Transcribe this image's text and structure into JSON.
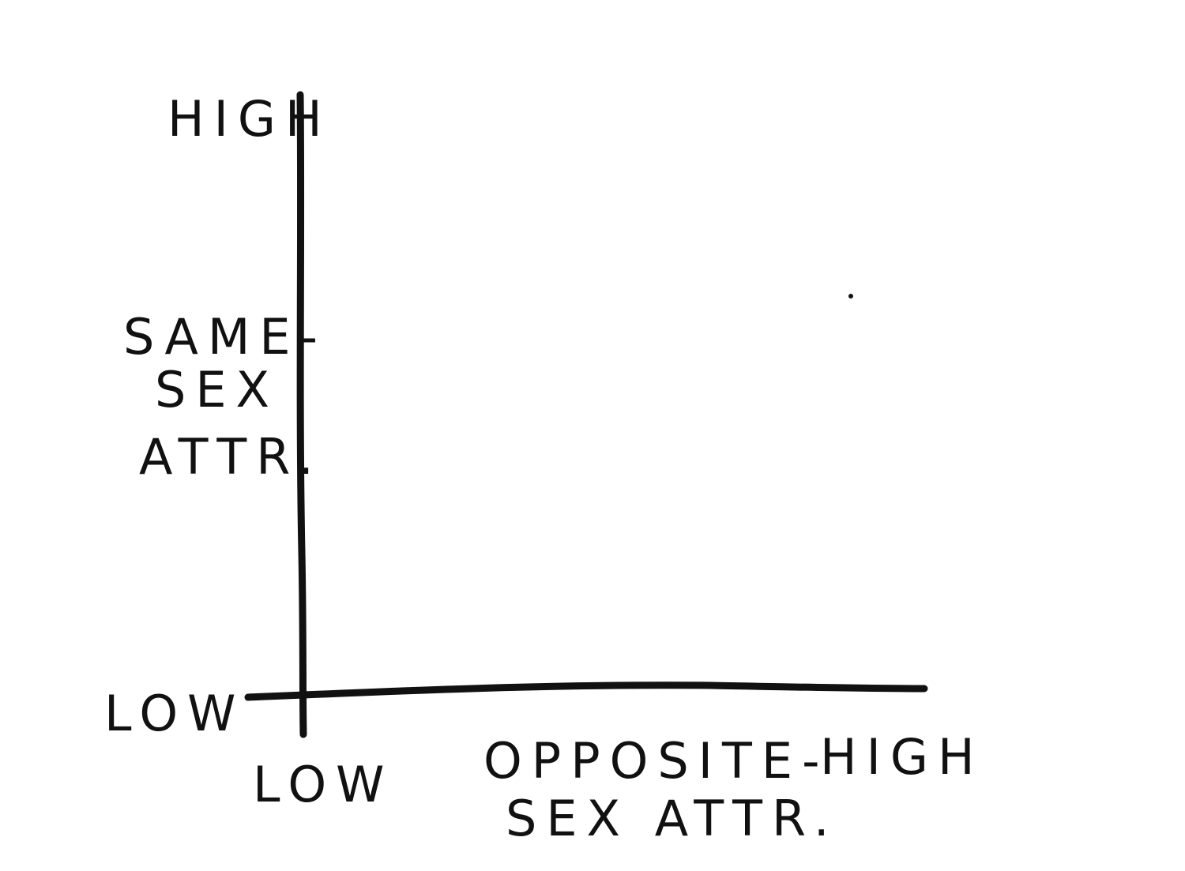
{
  "diagram": {
    "y_axis": {
      "high_label": "HIGH",
      "low_label": "LOW",
      "title_lines": [
        "SAME-",
        "SEX",
        "ATTR."
      ]
    },
    "x_axis": {
      "low_label": "LOW",
      "high_label": "HIGH",
      "title_lines": [
        "OPPOSITE-",
        "SEX ATTR."
      ]
    }
  }
}
